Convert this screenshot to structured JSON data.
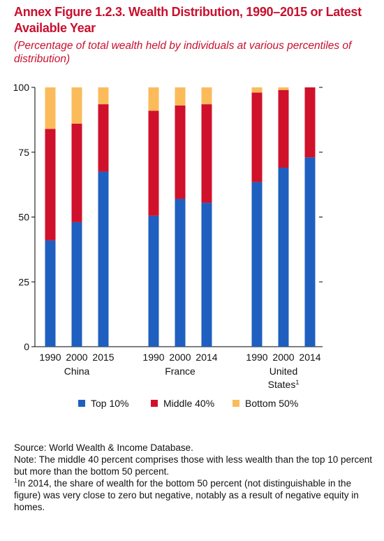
{
  "header": {
    "title": "Annex Figure 1.2.3. Wealth Distribution, 1990–2015 or Latest Available Year",
    "subtitle": "(Percentage of total wealth held by individuals at various percentiles of distribution)"
  },
  "chart_data": {
    "type": "bar",
    "stacked": true,
    "title": "",
    "xlabel": "",
    "ylabel": "",
    "ylim": [
      0,
      100
    ],
    "yticks": [
      0,
      25,
      50,
      75,
      100
    ],
    "grid": false,
    "legend_position": "bottom",
    "groups": [
      {
        "name": "China",
        "name_sup": "",
        "categories": [
          "1990",
          "2000",
          "2015"
        ]
      },
      {
        "name": "France",
        "name_sup": "",
        "categories": [
          "1990",
          "2000",
          "2014"
        ]
      },
      {
        "name": "United States",
        "name_sup": "1",
        "categories": [
          "1990",
          "2000",
          "2014"
        ]
      }
    ],
    "series": [
      {
        "name": "Top 10%",
        "color": "#1f5fbf",
        "values": [
          [
            41,
            48,
            67.5
          ],
          [
            50.5,
            57,
            55.5
          ],
          [
            63.5,
            69,
            73
          ]
        ]
      },
      {
        "name": "Middle 40%",
        "color": "#d0112b",
        "values": [
          [
            43,
            38,
            26
          ],
          [
            40.5,
            36,
            38
          ],
          [
            34.5,
            30,
            27
          ]
        ]
      },
      {
        "name": "Bottom 50%",
        "color": "#fbbb5b",
        "values": [
          [
            16,
            14,
            6.5
          ],
          [
            9,
            7,
            6.5
          ],
          [
            2,
            1,
            0
          ]
        ]
      }
    ]
  },
  "notes": {
    "source": "Source: World Wealth & Income Database.",
    "note": "Note: The middle 40 percent comprises those with less wealth than the top 10 percent but more than the bottom 50 percent.",
    "footnote_mark": "1",
    "footnote": "In 2014, the share of wealth for the bottom 50 percent (not distinguishable in the figure) was very close to zero but negative, notably as a result of negative equity in homes."
  }
}
